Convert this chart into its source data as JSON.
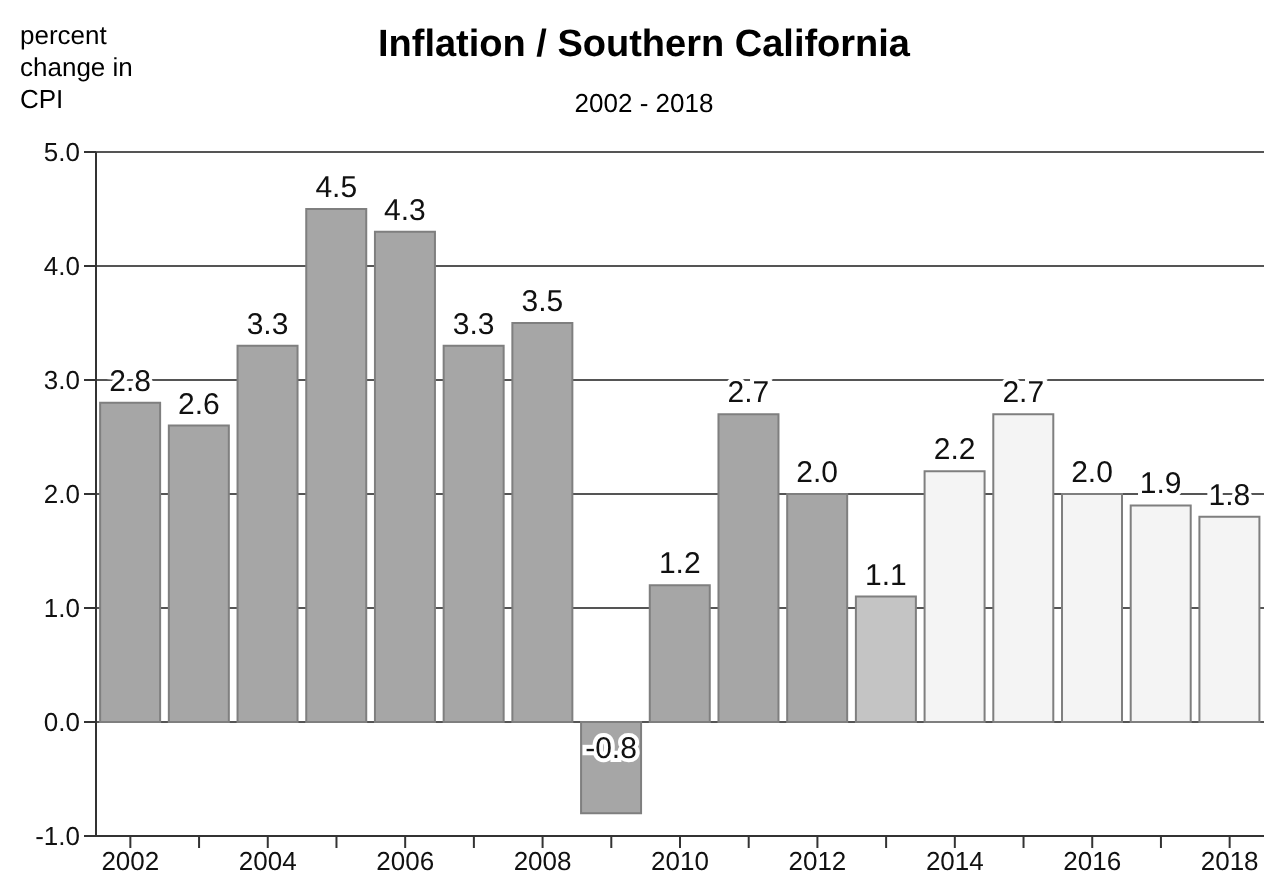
{
  "chart_data": {
    "type": "bar",
    "title": "Inflation / Southern California",
    "subtitle": "2002 - 2018",
    "ylabel": "percent change in CPI",
    "categories": [
      "2002",
      null,
      "2004",
      null,
      "2006",
      null,
      "2008",
      null,
      "2010",
      null,
      "2012",
      null,
      "2014",
      null,
      "2016",
      null,
      "2018"
    ],
    "values": [
      2.8,
      2.6,
      3.3,
      4.5,
      4.3,
      3.3,
      3.5,
      -0.8,
      1.2,
      2.7,
      2.0,
      1.1,
      2.2,
      2.7,
      2.0,
      1.9,
      1.8
    ],
    "value_labels": [
      "2.8",
      "2.6",
      "3.3",
      "4.5",
      "4.3",
      "3.3",
      "3.5",
      "-0.8",
      "1.2",
      "2.7",
      "2.0",
      "1.1",
      "2.2",
      "2.7",
      "2.0",
      "1.9",
      "1.8"
    ],
    "colors": [
      "#a6a6a6",
      "#a6a6a6",
      "#a6a6a6",
      "#a6a6a6",
      "#a6a6a6",
      "#a6a6a6",
      "#a6a6a6",
      "#a6a6a6",
      "#a6a6a6",
      "#a6a6a6",
      "#a6a6a6",
      "#c4c4c4",
      "#f4f4f4",
      "#f4f4f4",
      "#f4f4f4",
      "#f4f4f4",
      "#f4f4f4"
    ],
    "ylim": [
      -1,
      5
    ],
    "yticks": [
      {
        "value": -1,
        "label": "-1.0"
      },
      {
        "value": 0,
        "label": "0.0"
      },
      {
        "value": 1,
        "label": "1.0"
      },
      {
        "value": 2,
        "label": "2.0"
      },
      {
        "value": 3,
        "label": "3.0"
      },
      {
        "value": 4,
        "label": "4.0"
      },
      {
        "value": 5,
        "label": "5.0"
      }
    ],
    "grid": "y"
  }
}
